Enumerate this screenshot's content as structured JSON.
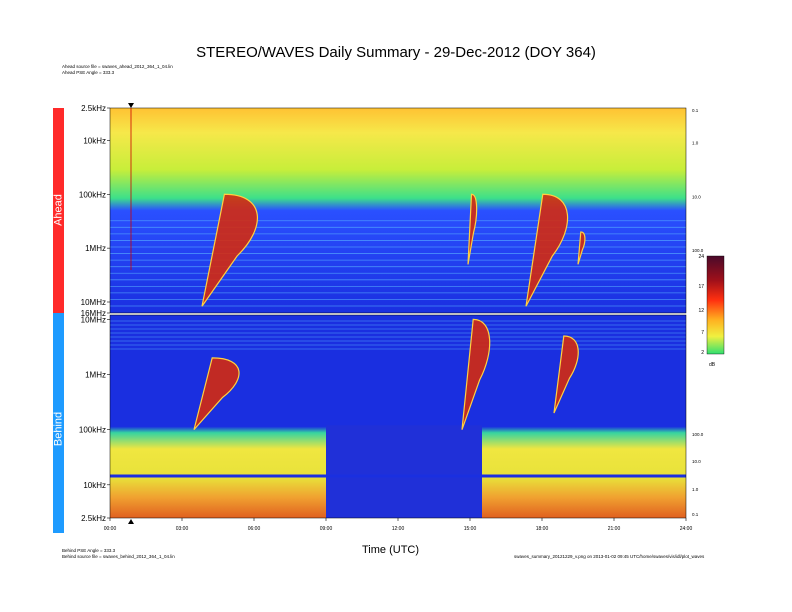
{
  "header": {
    "title": "STEREO/WAVES Daily Summary - 29-Dec-2012 (DOY 364)",
    "ahead_source": "Ahead source file = swaves_ahead_2012_364_1_04.lin",
    "ahead_pse": "Ahead PSE Angle = 333.3",
    "behind_pse": "Behind PSE Angle = 333.3",
    "behind_source": "Behind source file = swaves_behind_2012_364_1_04.lin",
    "footer_note": "swaves_summary_20121229_v.png on 2013-01-02 09:45 UTC/home/swaves/vis/idl/plot_waves"
  },
  "panels": {
    "ahead_label": "Ahead",
    "behind_label": "Behind"
  },
  "chart_data": {
    "type": "heatmap",
    "title": "STEREO/WAVES Daily Summary - 29-Dec-2012 (DOY 364)",
    "xlabel": "Time (UTC)",
    "x_ticks": [
      "00:00",
      "03:00",
      "06:00",
      "09:00",
      "12:00",
      "15:00",
      "18:00",
      "21:00",
      "24:00"
    ],
    "ahead_freq_ticks": [
      "2.5kHz",
      "10kHz",
      "100kHz",
      "1MHz",
      "10MHz",
      "16MHz"
    ],
    "behind_freq_ticks": [
      "10MHz",
      "1MHz",
      "100kHz",
      "10kHz",
      "2.5kHz"
    ],
    "ahead_right_ticks": [
      "0.1",
      "1.0",
      "10.0",
      "100.0"
    ],
    "behind_right_ticks": [
      "100.0",
      "10.0",
      "1.0",
      "0.1"
    ],
    "colorbar": {
      "ticks": [
        "24",
        "17",
        "12",
        "7",
        "2"
      ],
      "unit": "dB",
      "range": [
        2,
        24
      ]
    },
    "bursts": [
      {
        "panel": "ahead",
        "start": "03:50",
        "end": "06:30",
        "f_high_mhz": 0.1,
        "f_low_mhz": 12
      },
      {
        "panel": "ahead",
        "start": "14:55",
        "end": "15:20",
        "f_high_mhz": 0.1,
        "f_low_mhz": 2
      },
      {
        "panel": "ahead",
        "start": "17:20",
        "end": "19:20",
        "f_high_mhz": 0.1,
        "f_low_mhz": 12
      },
      {
        "panel": "ahead",
        "start": "19:30",
        "end": "19:50",
        "f_high_mhz": 0.5,
        "f_low_mhz": 2
      },
      {
        "panel": "behind",
        "start": "03:30",
        "end": "05:40",
        "f_high_mhz": 2,
        "f_low_mhz": 0.1
      },
      {
        "panel": "behind",
        "start": "14:40",
        "end": "16:00",
        "f_high_mhz": 10,
        "f_low_mhz": 0.1
      },
      {
        "panel": "behind",
        "start": "18:30",
        "end": "19:40",
        "f_high_mhz": 5,
        "f_low_mhz": 0.2
      }
    ],
    "behind_data_gap": {
      "start": "09:00",
      "end": "15:30"
    }
  },
  "colors": {
    "ahead_marker": "#ff2a2a",
    "behind_marker": "#1e9bff",
    "background_blue": "#1a2fe0"
  }
}
